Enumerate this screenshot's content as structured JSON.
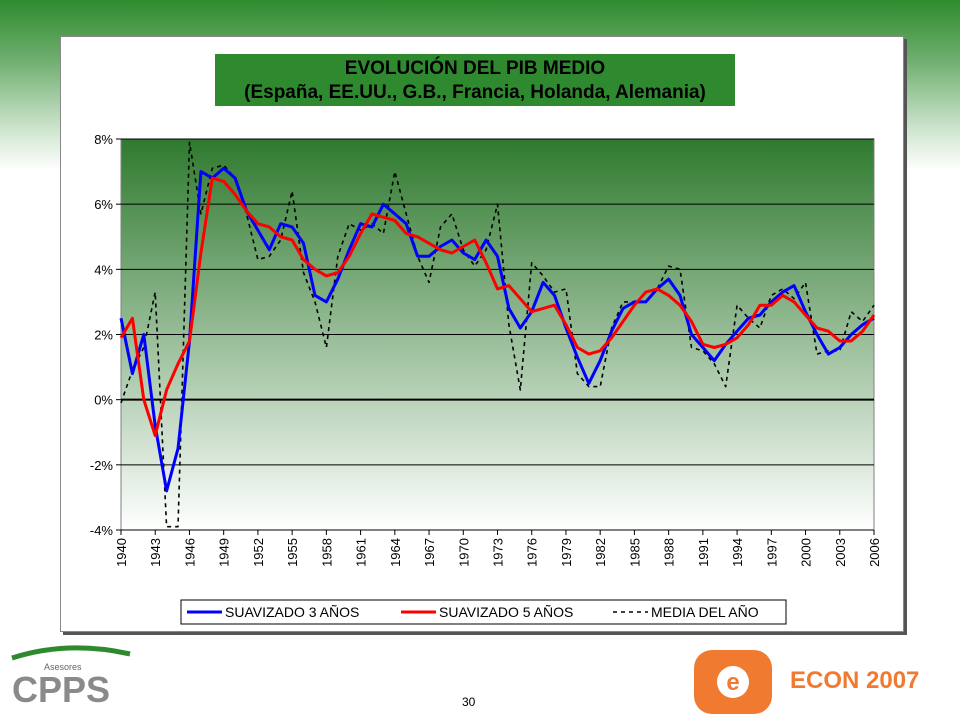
{
  "page": {
    "number": "30"
  },
  "logos": {
    "cpps_text": "CPPS",
    "cpps_sub": "Asesores",
    "econ_text": "ECON 2007"
  },
  "colors": {
    "series_3": "#0000ff",
    "series_5": "#ff0000",
    "series_media": "#000000",
    "plot_top": "#2f7a2f",
    "plot_bottom": "#ffffff",
    "econ_orange": "#f07a30"
  },
  "chart_data": {
    "type": "line",
    "title": "EVOLUCIÓN DEL PIB MEDIO",
    "subtitle": "(España, EE.UU., G.B., Francia, Holanda, Alemania)",
    "ylim": [
      -0.04,
      0.08
    ],
    "yticks": [
      "8%",
      "6%",
      "4%",
      "2%",
      "0%",
      "-2%",
      "-4%"
    ],
    "ytick_values": [
      0.08,
      0.06,
      0.04,
      0.02,
      0.0,
      -0.02,
      -0.04
    ],
    "xlim": [
      1940,
      2006
    ],
    "xticks": [
      "1940",
      "1943",
      "1946",
      "1949",
      "1952",
      "1955",
      "1958",
      "1961",
      "1964",
      "1967",
      "1970",
      "1973",
      "1976",
      "1979",
      "1982",
      "1985",
      "1988",
      "1991",
      "1994",
      "1997",
      "2000",
      "2003",
      "2006"
    ],
    "legend_placement": "bottom",
    "grid": true,
    "x": [
      1940,
      1941,
      1942,
      1943,
      1944,
      1945,
      1946,
      1947,
      1948,
      1949,
      1950,
      1951,
      1952,
      1953,
      1954,
      1955,
      1956,
      1957,
      1958,
      1959,
      1960,
      1961,
      1962,
      1963,
      1964,
      1965,
      1966,
      1967,
      1968,
      1969,
      1970,
      1971,
      1972,
      1973,
      1974,
      1975,
      1976,
      1977,
      1978,
      1979,
      1980,
      1981,
      1982,
      1983,
      1984,
      1985,
      1986,
      1987,
      1988,
      1989,
      1990,
      1991,
      1992,
      1993,
      1994,
      1995,
      1996,
      1997,
      1998,
      1999,
      2000,
      2001,
      2002,
      2003,
      2004,
      2005,
      2006
    ],
    "series": [
      {
        "name": "SUAVIZADO 3 AÑOS",
        "style": "solid",
        "values": [
          0.025,
          0.008,
          0.02,
          -0.008,
          -0.028,
          -0.015,
          0.018,
          0.07,
          0.068,
          0.071,
          0.068,
          0.058,
          0.052,
          0.046,
          0.054,
          0.053,
          0.048,
          0.032,
          0.03,
          0.037,
          0.046,
          0.054,
          0.053,
          0.06,
          0.057,
          0.054,
          0.044,
          0.044,
          0.047,
          0.049,
          0.045,
          0.043,
          0.049,
          0.044,
          0.028,
          0.022,
          0.027,
          0.036,
          0.032,
          0.022,
          0.013,
          0.005,
          0.012,
          0.021,
          0.028,
          0.03,
          0.03,
          0.034,
          0.037,
          0.032,
          0.02,
          0.016,
          0.012,
          0.017,
          0.021,
          0.025,
          0.026,
          0.03,
          0.033,
          0.035,
          0.027,
          0.02,
          0.014,
          0.016,
          0.02,
          0.023,
          0.025
        ]
      },
      {
        "name": "SUAVIZADO 5 AÑOS",
        "style": "solid",
        "values": [
          0.019,
          0.025,
          0.0,
          -0.011,
          0.003,
          0.011,
          0.018,
          0.045,
          0.068,
          0.067,
          0.063,
          0.058,
          0.054,
          0.053,
          0.05,
          0.049,
          0.043,
          0.04,
          0.038,
          0.039,
          0.044,
          0.051,
          0.057,
          0.056,
          0.055,
          0.051,
          0.05,
          0.048,
          0.046,
          0.045,
          0.047,
          0.049,
          0.042,
          0.034,
          0.035,
          0.031,
          0.027,
          0.028,
          0.029,
          0.023,
          0.016,
          0.014,
          0.015,
          0.019,
          0.024,
          0.029,
          0.033,
          0.034,
          0.032,
          0.029,
          0.024,
          0.017,
          0.016,
          0.017,
          0.019,
          0.023,
          0.029,
          0.029,
          0.032,
          0.03,
          0.026,
          0.022,
          0.021,
          0.018,
          0.018,
          0.021,
          0.026
        ]
      },
      {
        "name": "MEDIA DEL AÑO",
        "style": "dashed",
        "values": [
          -0.001,
          0.009,
          0.016,
          0.033,
          -0.039,
          -0.039,
          0.079,
          0.057,
          0.071,
          0.072,
          0.068,
          0.057,
          0.043,
          0.044,
          0.049,
          0.064,
          0.039,
          0.03,
          0.016,
          0.044,
          0.054,
          0.052,
          0.054,
          0.051,
          0.07,
          0.057,
          0.044,
          0.036,
          0.053,
          0.057,
          0.046,
          0.041,
          0.046,
          0.06,
          0.023,
          0.003,
          0.042,
          0.038,
          0.033,
          0.034,
          0.008,
          0.004,
          0.004,
          0.022,
          0.03,
          0.03,
          0.03,
          0.034,
          0.041,
          0.04,
          0.016,
          0.015,
          0.011,
          0.004,
          0.029,
          0.025,
          0.022,
          0.032,
          0.034,
          0.031,
          0.036,
          0.014,
          0.015,
          0.015,
          0.027,
          0.024,
          0.029
        ]
      }
    ]
  }
}
